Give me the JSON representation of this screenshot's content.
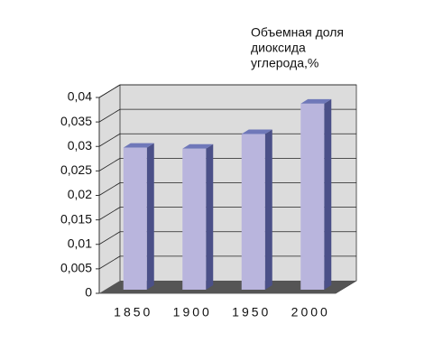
{
  "chart_data": {
    "type": "bar3d",
    "title": [
      "Объемная доля",
      "диоксида",
      "углерода,%"
    ],
    "categories": [
      "1850",
      "1900",
      "1950",
      "2000"
    ],
    "values": [
      0.029,
      0.0288,
      0.0318,
      0.038
    ],
    "color": "#b9b5dd",
    "ylim": [
      0,
      0.04
    ],
    "yticks": [
      0,
      {
        "value": 0.005,
        "label": "0,005"
      },
      {
        "value": 0.01,
        "label": "0,01"
      },
      {
        "value": 0.015,
        "label": "0,015"
      },
      {
        "value": 0.02,
        "label": "0,02"
      },
      {
        "value": 0.025,
        "label": "0,025"
      },
      {
        "value": 0.03,
        "label": "0,03"
      },
      {
        "value": 0.035,
        "label": "0,035"
      },
      {
        "value": 0.04,
        "label": "0,04"
      }
    ],
    "grid": true
  }
}
